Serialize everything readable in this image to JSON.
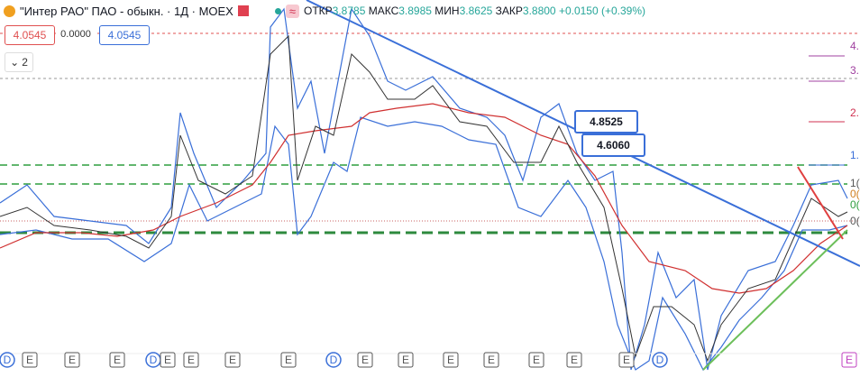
{
  "header": {
    "title": "\"Интер РАО\" ПАО - обыкн. · 1Д · MOEX",
    "open_label": "ОТКР",
    "open": "3.8785",
    "high_label": "МАКС",
    "high": "3.8985",
    "low_label": "МИН",
    "low": "3.8625",
    "close_label": "ЗАКР",
    "close": "3.8800",
    "change": "+0.0150 (+0.39%)"
  },
  "price_boxes": {
    "sell": "4.0545",
    "spread": "0.0000",
    "buy": "4.0545"
  },
  "indicators_count": "2",
  "callouts": [
    "4.8525",
    "4.6060"
  ],
  "fib_labels": [
    "4.",
    "3.",
    "2.",
    "1.",
    "1(",
    "0(",
    "0(",
    "0("
  ],
  "event_markers": [
    "D",
    "E",
    "E",
    "E",
    "D",
    "E",
    "E",
    "E",
    "E",
    "D",
    "E",
    "E",
    "E",
    "E",
    "E",
    "E",
    "E",
    "D",
    "E"
  ]
}
